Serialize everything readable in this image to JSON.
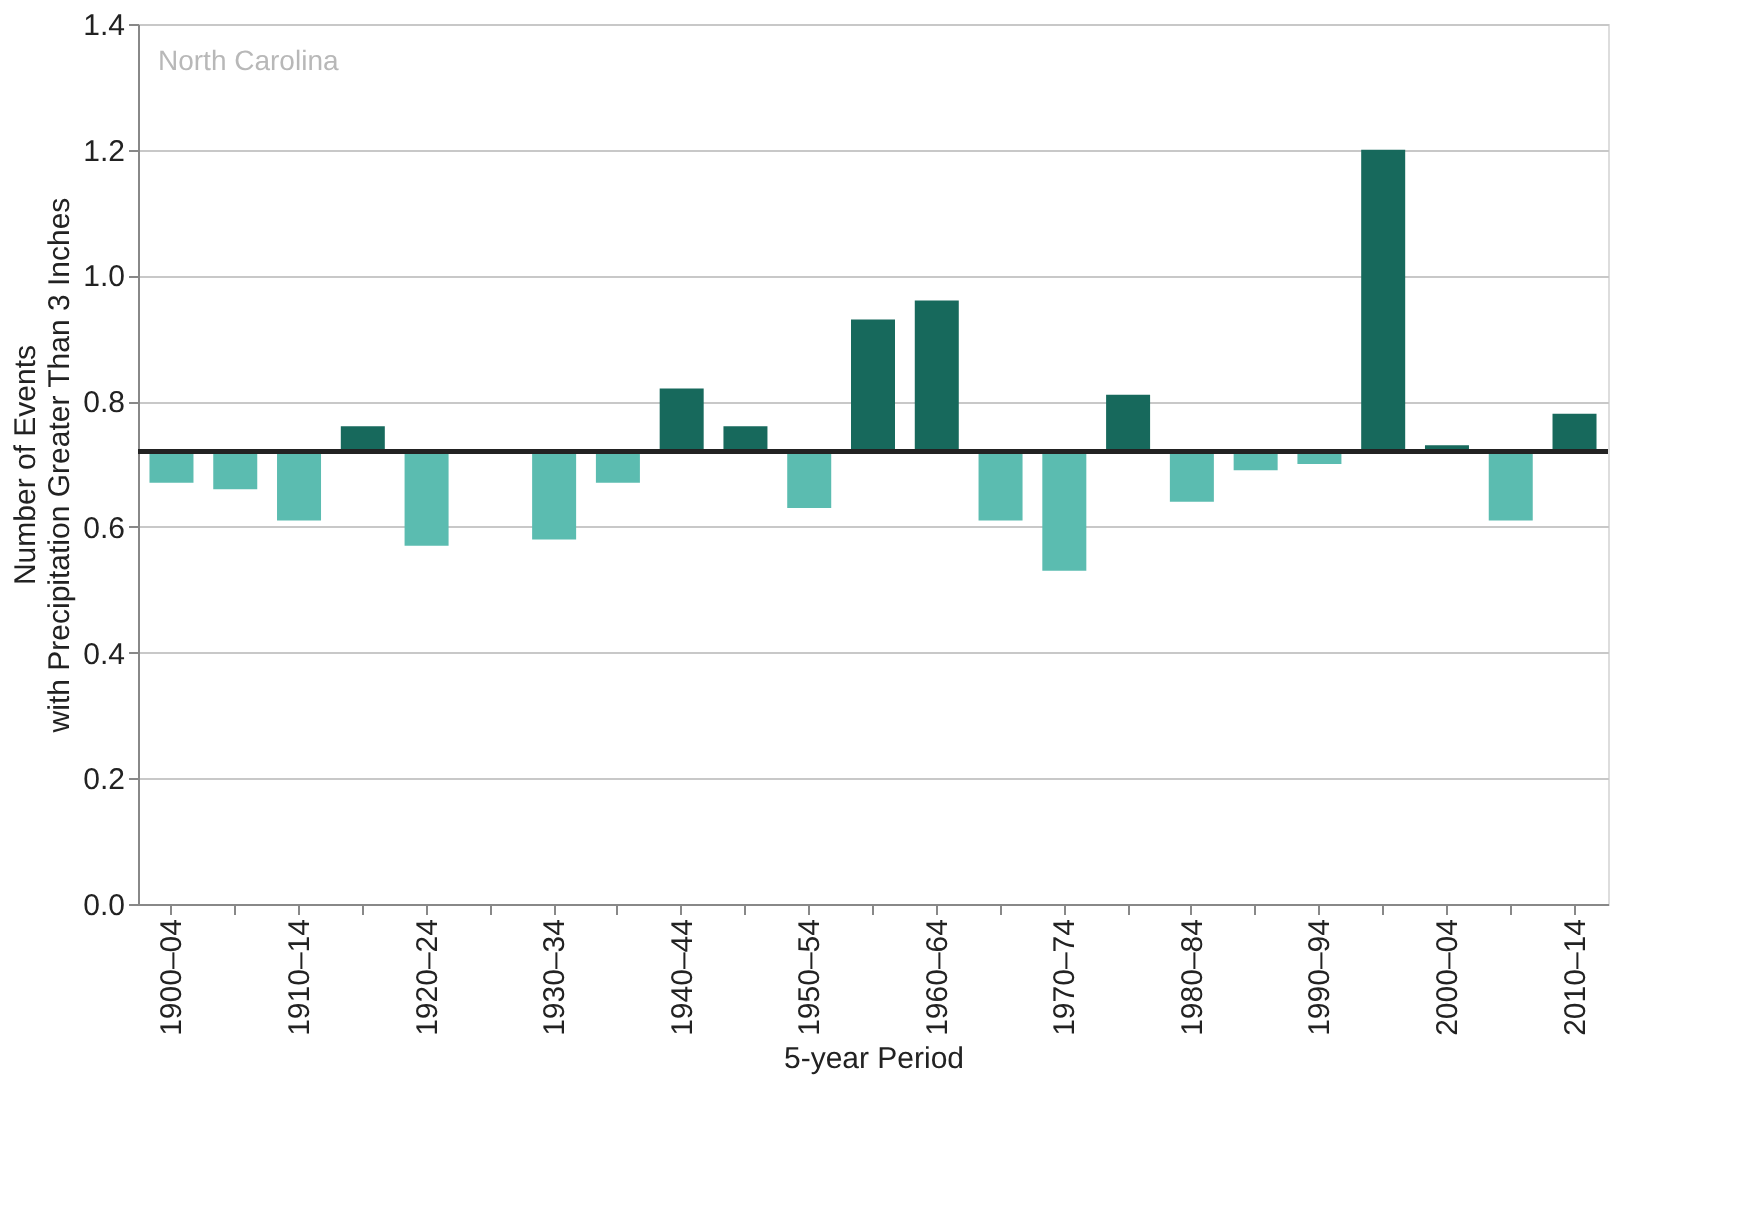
{
  "chart_data": {
    "type": "bar",
    "xlabel": "5-year Period",
    "ylabel": "Number of Events\nwith Precipitation Greater Than 3 Inches",
    "categories": [
      "1900–04",
      null,
      "1910–14",
      null,
      "1920–24",
      null,
      "1930–34",
      null,
      "1940–44",
      null,
      "1950–54",
      null,
      "1960–64",
      null,
      "1970–74",
      null,
      "1980–84",
      null,
      "1990–94",
      null,
      "2000–04",
      null,
      "2010–14"
    ],
    "base": [
      0.72,
      0.72,
      0.72,
      0.72,
      0.72,
      null,
      0.72,
      0.72,
      0.72,
      0.72,
      0.72,
      0.72,
      0.72,
      0.72,
      0.72,
      0.72,
      0.72,
      0.72,
      0.72,
      0.72,
      0.72,
      0.72,
      0.72
    ],
    "values": [
      -0.05,
      -0.06,
      -0.11,
      0.04,
      -0.15,
      null,
      -0.14,
      -0.05,
      0.1,
      0.04,
      -0.09,
      0.21,
      0.24,
      -0.11,
      -0.19,
      0.09,
      -0.08,
      -0.03,
      -0.02,
      0.48,
      0.01,
      -0.11,
      0.06
    ],
    "colors": [
      "#5bbcb0",
      "#5bbcb0",
      "#5bbcb0",
      "#17695c",
      "#5bbcb0",
      "#5bbcb0",
      "#5bbcb0",
      "#5bbcb0",
      "#17695c",
      "#17695c",
      "#5bbcb0",
      "#17695c",
      "#17695c",
      "#5bbcb0",
      "#5bbcb0",
      "#17695c",
      "#5bbcb0",
      "#5bbcb0",
      "#5bbcb0",
      "#17695c",
      "#17695c",
      "#5bbcb0",
      "#17695c"
    ],
    "ylim": [
      0,
      1.4
    ],
    "yticks": [
      {
        "value": 0,
        "label": "0.0"
      },
      0.2,
      0.4,
      0.6,
      0.8,
      {
        "value": 1,
        "label": "1.0"
      },
      1.2,
      1.4
    ],
    "ref_lines": [
      {
        "axis": "y",
        "value": 0.72,
        "color": "#222222"
      }
    ],
    "annotations": [
      "North Carolina"
    ],
    "grid": "y"
  }
}
